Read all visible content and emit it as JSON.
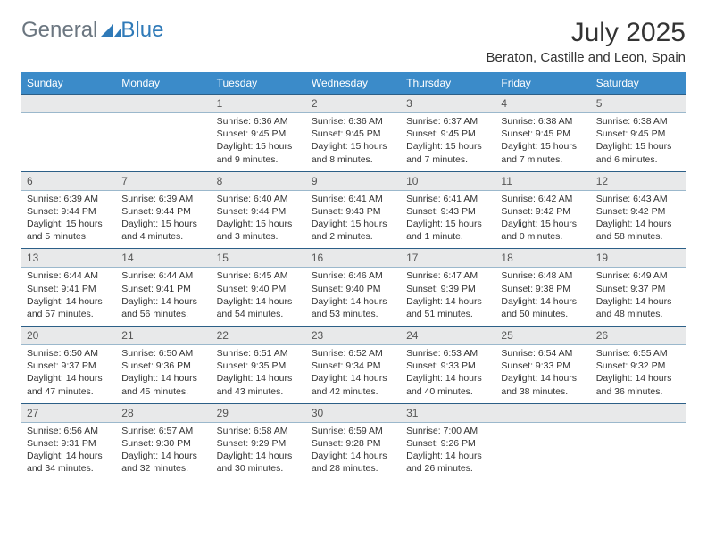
{
  "brand": {
    "part1": "General",
    "part2": "Blue"
  },
  "title": "July 2025",
  "location": "Beraton, Castille and Leon, Spain",
  "colors": {
    "header_bg": "#3b8bc9",
    "header_text": "#ffffff",
    "daynum_bg": "#e8e9ea",
    "row_border_top": "#2c5f87",
    "row_border_bottom": "#9bb8cc",
    "brand_gray": "#6b7680",
    "brand_blue": "#2f7ab8"
  },
  "day_headers": [
    "Sunday",
    "Monday",
    "Tuesday",
    "Wednesday",
    "Thursday",
    "Friday",
    "Saturday"
  ],
  "weeks": [
    [
      null,
      null,
      {
        "n": "1",
        "sr": "Sunrise: 6:36 AM",
        "ss": "Sunset: 9:45 PM",
        "dl": "Daylight: 15 hours and 9 minutes."
      },
      {
        "n": "2",
        "sr": "Sunrise: 6:36 AM",
        "ss": "Sunset: 9:45 PM",
        "dl": "Daylight: 15 hours and 8 minutes."
      },
      {
        "n": "3",
        "sr": "Sunrise: 6:37 AM",
        "ss": "Sunset: 9:45 PM",
        "dl": "Daylight: 15 hours and 7 minutes."
      },
      {
        "n": "4",
        "sr": "Sunrise: 6:38 AM",
        "ss": "Sunset: 9:45 PM",
        "dl": "Daylight: 15 hours and 7 minutes."
      },
      {
        "n": "5",
        "sr": "Sunrise: 6:38 AM",
        "ss": "Sunset: 9:45 PM",
        "dl": "Daylight: 15 hours and 6 minutes."
      }
    ],
    [
      {
        "n": "6",
        "sr": "Sunrise: 6:39 AM",
        "ss": "Sunset: 9:44 PM",
        "dl": "Daylight: 15 hours and 5 minutes."
      },
      {
        "n": "7",
        "sr": "Sunrise: 6:39 AM",
        "ss": "Sunset: 9:44 PM",
        "dl": "Daylight: 15 hours and 4 minutes."
      },
      {
        "n": "8",
        "sr": "Sunrise: 6:40 AM",
        "ss": "Sunset: 9:44 PM",
        "dl": "Daylight: 15 hours and 3 minutes."
      },
      {
        "n": "9",
        "sr": "Sunrise: 6:41 AM",
        "ss": "Sunset: 9:43 PM",
        "dl": "Daylight: 15 hours and 2 minutes."
      },
      {
        "n": "10",
        "sr": "Sunrise: 6:41 AM",
        "ss": "Sunset: 9:43 PM",
        "dl": "Daylight: 15 hours and 1 minute."
      },
      {
        "n": "11",
        "sr": "Sunrise: 6:42 AM",
        "ss": "Sunset: 9:42 PM",
        "dl": "Daylight: 15 hours and 0 minutes."
      },
      {
        "n": "12",
        "sr": "Sunrise: 6:43 AM",
        "ss": "Sunset: 9:42 PM",
        "dl": "Daylight: 14 hours and 58 minutes."
      }
    ],
    [
      {
        "n": "13",
        "sr": "Sunrise: 6:44 AM",
        "ss": "Sunset: 9:41 PM",
        "dl": "Daylight: 14 hours and 57 minutes."
      },
      {
        "n": "14",
        "sr": "Sunrise: 6:44 AM",
        "ss": "Sunset: 9:41 PM",
        "dl": "Daylight: 14 hours and 56 minutes."
      },
      {
        "n": "15",
        "sr": "Sunrise: 6:45 AM",
        "ss": "Sunset: 9:40 PM",
        "dl": "Daylight: 14 hours and 54 minutes."
      },
      {
        "n": "16",
        "sr": "Sunrise: 6:46 AM",
        "ss": "Sunset: 9:40 PM",
        "dl": "Daylight: 14 hours and 53 minutes."
      },
      {
        "n": "17",
        "sr": "Sunrise: 6:47 AM",
        "ss": "Sunset: 9:39 PM",
        "dl": "Daylight: 14 hours and 51 minutes."
      },
      {
        "n": "18",
        "sr": "Sunrise: 6:48 AM",
        "ss": "Sunset: 9:38 PM",
        "dl": "Daylight: 14 hours and 50 minutes."
      },
      {
        "n": "19",
        "sr": "Sunrise: 6:49 AM",
        "ss": "Sunset: 9:37 PM",
        "dl": "Daylight: 14 hours and 48 minutes."
      }
    ],
    [
      {
        "n": "20",
        "sr": "Sunrise: 6:50 AM",
        "ss": "Sunset: 9:37 PM",
        "dl": "Daylight: 14 hours and 47 minutes."
      },
      {
        "n": "21",
        "sr": "Sunrise: 6:50 AM",
        "ss": "Sunset: 9:36 PM",
        "dl": "Daylight: 14 hours and 45 minutes."
      },
      {
        "n": "22",
        "sr": "Sunrise: 6:51 AM",
        "ss": "Sunset: 9:35 PM",
        "dl": "Daylight: 14 hours and 43 minutes."
      },
      {
        "n": "23",
        "sr": "Sunrise: 6:52 AM",
        "ss": "Sunset: 9:34 PM",
        "dl": "Daylight: 14 hours and 42 minutes."
      },
      {
        "n": "24",
        "sr": "Sunrise: 6:53 AM",
        "ss": "Sunset: 9:33 PM",
        "dl": "Daylight: 14 hours and 40 minutes."
      },
      {
        "n": "25",
        "sr": "Sunrise: 6:54 AM",
        "ss": "Sunset: 9:33 PM",
        "dl": "Daylight: 14 hours and 38 minutes."
      },
      {
        "n": "26",
        "sr": "Sunrise: 6:55 AM",
        "ss": "Sunset: 9:32 PM",
        "dl": "Daylight: 14 hours and 36 minutes."
      }
    ],
    [
      {
        "n": "27",
        "sr": "Sunrise: 6:56 AM",
        "ss": "Sunset: 9:31 PM",
        "dl": "Daylight: 14 hours and 34 minutes."
      },
      {
        "n": "28",
        "sr": "Sunrise: 6:57 AM",
        "ss": "Sunset: 9:30 PM",
        "dl": "Daylight: 14 hours and 32 minutes."
      },
      {
        "n": "29",
        "sr": "Sunrise: 6:58 AM",
        "ss": "Sunset: 9:29 PM",
        "dl": "Daylight: 14 hours and 30 minutes."
      },
      {
        "n": "30",
        "sr": "Sunrise: 6:59 AM",
        "ss": "Sunset: 9:28 PM",
        "dl": "Daylight: 14 hours and 28 minutes."
      },
      {
        "n": "31",
        "sr": "Sunrise: 7:00 AM",
        "ss": "Sunset: 9:26 PM",
        "dl": "Daylight: 14 hours and 26 minutes."
      },
      null,
      null
    ]
  ]
}
